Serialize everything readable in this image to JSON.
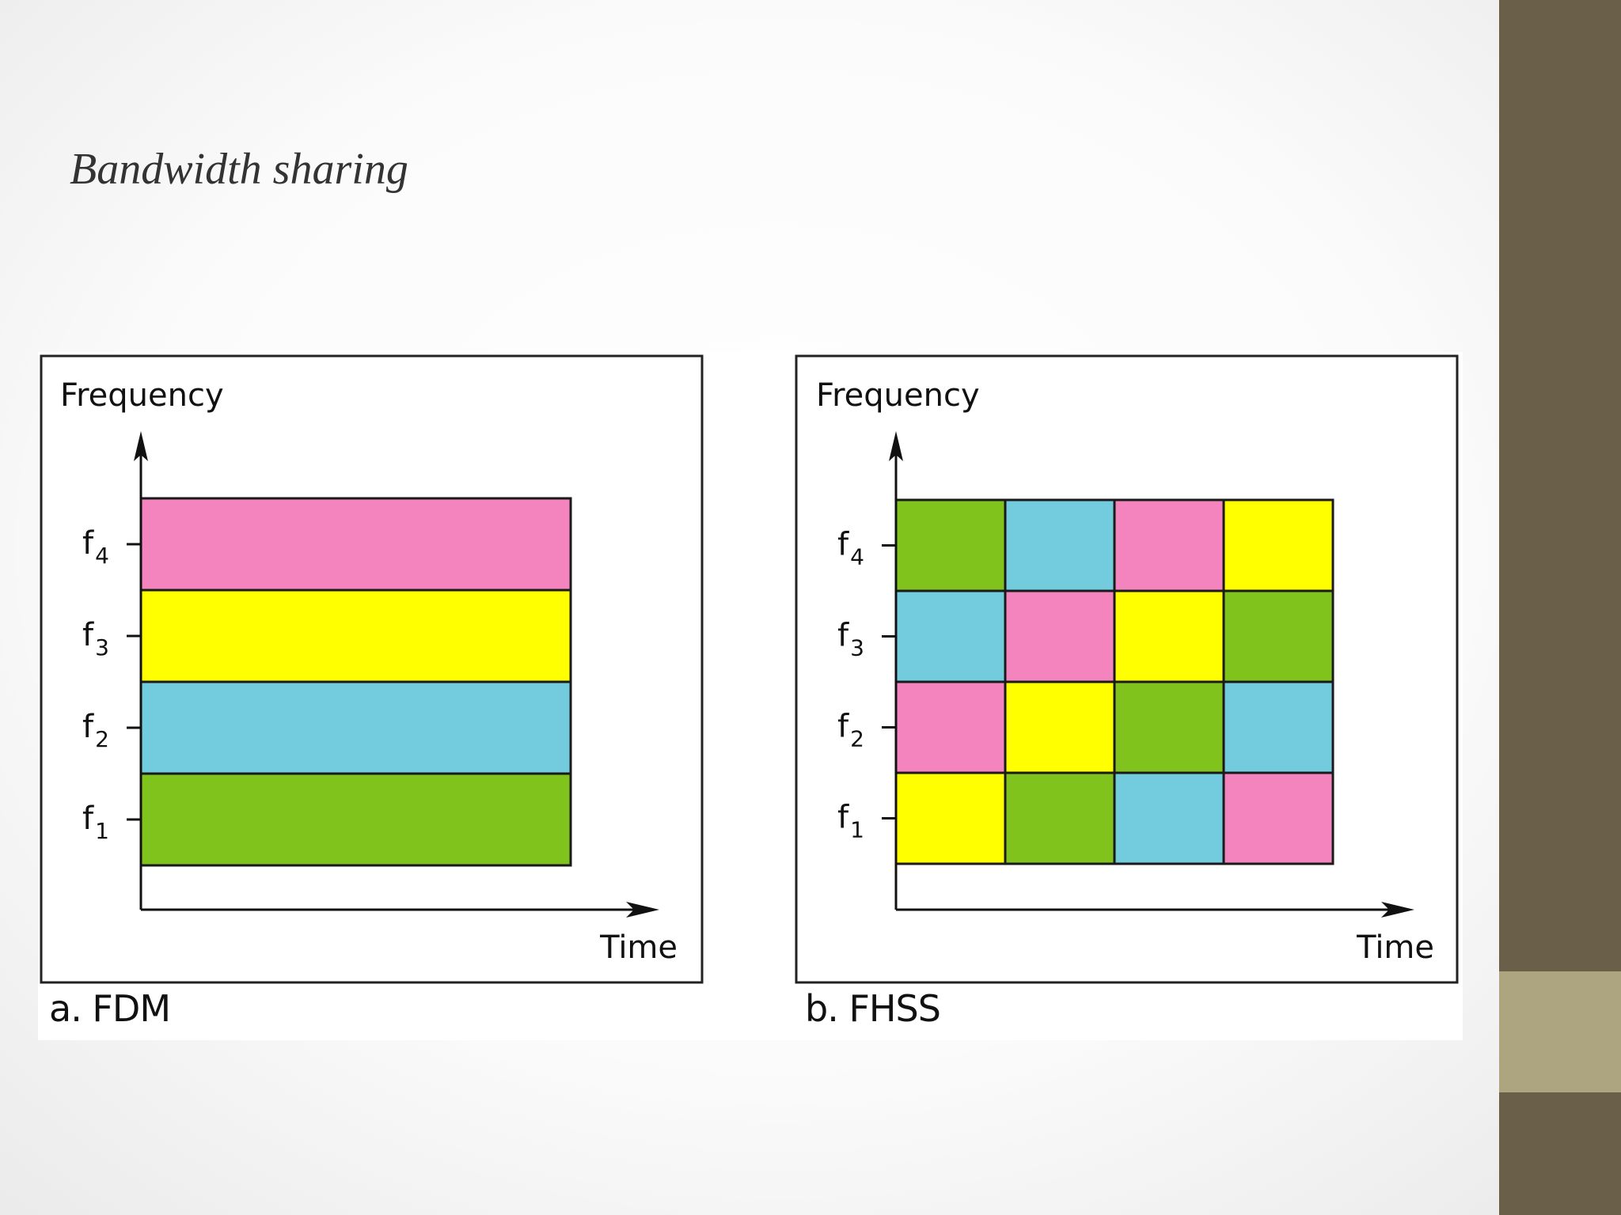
{
  "slide": {
    "title": "Bandwidth sharing",
    "colors": {
      "background": "#ffffff",
      "side_bar": "#6a5f49",
      "side_accent": "#aca57f"
    }
  },
  "palette": {
    "green": "#80c31c",
    "blue": "#73cbde",
    "pink": "#f484be",
    "yellow": "#ffff00"
  },
  "panels": [
    {
      "id": "fdm",
      "caption": "a. FDM",
      "y_axis_label": "Frequency",
      "x_axis_label": "Time",
      "channels": [
        {
          "base": "f",
          "sub": "4",
          "color": "pink"
        },
        {
          "base": "f",
          "sub": "3",
          "color": "yellow"
        },
        {
          "base": "f",
          "sub": "2",
          "color": "blue"
        },
        {
          "base": "f",
          "sub": "1",
          "color": "green"
        }
      ]
    },
    {
      "id": "fhss",
      "caption": "b. FHSS",
      "y_axis_label": "Frequency",
      "x_axis_label": "Time",
      "channels": [
        {
          "base": "f",
          "sub": "4"
        },
        {
          "base": "f",
          "sub": "3"
        },
        {
          "base": "f",
          "sub": "2"
        },
        {
          "base": "f",
          "sub": "1"
        }
      ],
      "hop_grid": [
        [
          "green",
          "blue",
          "pink",
          "yellow"
        ],
        [
          "blue",
          "pink",
          "yellow",
          "green"
        ],
        [
          "pink",
          "yellow",
          "green",
          "blue"
        ],
        [
          "yellow",
          "green",
          "blue",
          "pink"
        ]
      ]
    }
  ]
}
